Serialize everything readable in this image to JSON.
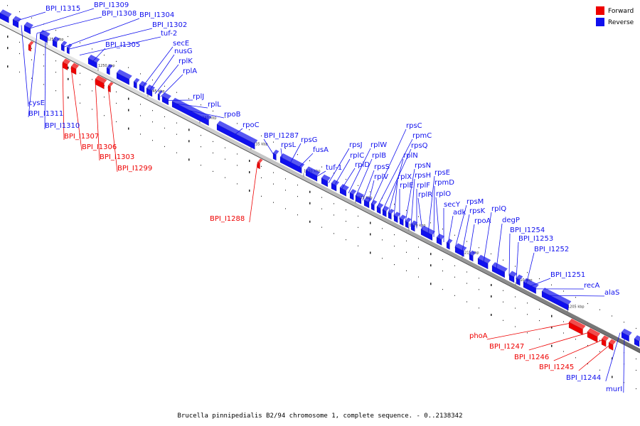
{
  "caption": "Brucella pinnipedialis B2/94 chromosome 1, complete sequence. - 0..2138342",
  "legend": {
    "forward": {
      "label": "Forward",
      "color": "#ee0000"
    },
    "reverse": {
      "label": "Reverse",
      "color": "#1010ee"
    }
  },
  "ticks": [
    "1255 kbp",
    "1250 kbp",
    "1245 kbp",
    "1240 kbp",
    "1235 kbp",
    "1230 kbp",
    "1225 kbp",
    "1220 kbp",
    "1215 kbp",
    "1210 kbp",
    "1205 kbp"
  ],
  "genes": {
    "reverse": [
      "BPI_I1315",
      "BPI_I1309",
      "BPI_I1308",
      "BPI_I1304",
      "BPI_I1302",
      "tuf-2",
      "BPI_I1305",
      "secE",
      "nusG",
      "rplK",
      "rplA",
      "rplJ",
      "rplL",
      "rpoB",
      "rpoC",
      "BPI_I1287",
      "rpsL",
      "rpsG",
      "fusA",
      "tuf-1",
      "rpsJ",
      "rplC",
      "rplD",
      "rplW",
      "rplB",
      "rpsS",
      "rplV",
      "rpsC",
      "rpmC",
      "rpsQ",
      "rplN",
      "rplX",
      "rplE",
      "rpsN",
      "rpsH",
      "rplF",
      "rplR",
      "rpsE",
      "rpmD",
      "rplO",
      "secY",
      "adk",
      "rpsM",
      "rpsK",
      "rpoA",
      "rplQ",
      "degP",
      "BPI_I1254",
      "BPI_I1253",
      "BPI_I1252",
      "BPI_I1251",
      "recA",
      "alaS",
      "cysE",
      "BPI_I1311",
      "BPI_I1310",
      "BPI_I1244",
      "murI"
    ],
    "forward": [
      "BPI_I1307",
      "BPI_I1306",
      "BPI_I1303",
      "BPI_I1299",
      "BPI_I1288",
      "phoA",
      "BPI_I1247",
      "BPI_I1246",
      "BPI_I1245"
    ]
  }
}
